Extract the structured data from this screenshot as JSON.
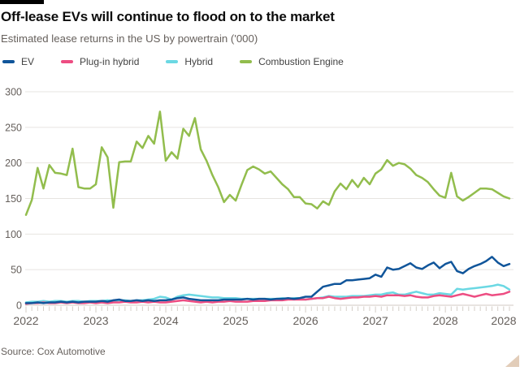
{
  "header": {
    "title": "Off-lease EVs will continue to flood on to the market",
    "subtitle": "Estimated lease returns in the US by powertrain ('000)"
  },
  "source": "Source: Cox Automotive",
  "colors": {
    "accent_bar": "#000000",
    "grid": "#e7e4e0",
    "zero_line": "#d0cac3",
    "tick": "#d4cec7",
    "axis_text": "#66605c",
    "resize_handle": "#e2cdb9"
  },
  "chart_data": {
    "type": "line",
    "title": "Off-lease EVs will continue to flood on to the market",
    "subtitle": "Estimated lease returns in the US by powertrain ('000)",
    "x_unit": "month",
    "x_start": "Jan 2022",
    "x_end": "Dec 2028",
    "x_tick_labels": [
      "2022",
      "2023",
      "2024",
      "2025",
      "2026",
      "2027",
      "2028",
      "2028"
    ],
    "y_ticks": [
      0,
      50,
      100,
      150,
      200,
      250,
      300
    ],
    "ylim": [
      0,
      300
    ],
    "grid": "horizontal",
    "legend_position": "top",
    "series": [
      {
        "name": "EV",
        "color": "#10559a",
        "values": [
          3,
          3,
          4,
          3,
          4,
          4,
          5,
          4,
          5,
          4,
          5,
          5,
          5,
          6,
          5,
          7,
          8,
          6,
          6,
          7,
          6,
          7,
          6,
          7,
          7,
          8,
          10,
          11,
          9,
          8,
          7,
          7,
          7,
          7,
          8,
          8,
          8,
          8,
          9,
          8,
          9,
          9,
          8,
          9,
          9,
          10,
          9,
          10,
          12,
          12,
          19,
          26,
          28,
          30,
          30,
          35,
          35,
          36,
          37,
          38,
          43,
          40,
          53,
          50,
          51,
          55,
          59,
          53,
          51,
          56,
          60,
          52,
          58,
          61,
          48,
          45,
          51,
          55,
          58,
          62,
          68,
          60,
          55,
          58
        ]
      },
      {
        "name": "Plug-in hybrid",
        "color": "#ed4d82",
        "values": [
          2,
          3,
          3,
          4,
          3,
          3,
          4,
          3,
          4,
          3,
          3,
          4,
          3,
          4,
          3,
          4,
          4,
          5,
          4,
          4,
          5,
          4,
          5,
          4,
          4,
          5,
          6,
          7,
          6,
          5,
          4,
          5,
          4,
          5,
          5,
          6,
          5,
          5,
          5,
          6,
          6,
          6,
          7,
          7,
          7,
          8,
          8,
          8,
          8,
          9,
          10,
          10,
          12,
          10,
          9,
          10,
          11,
          11,
          12,
          12,
          13,
          12,
          14,
          14,
          14,
          13,
          14,
          12,
          11,
          11,
          13,
          14,
          13,
          12,
          14,
          16,
          14,
          12,
          14,
          16,
          14,
          15,
          16,
          19
        ]
      },
      {
        "name": "Hybrid",
        "color": "#6bd8e3",
        "values": [
          4,
          5,
          5,
          6,
          5,
          6,
          6,
          5,
          6,
          6,
          5,
          6,
          6,
          6,
          7,
          6,
          7,
          7,
          6,
          7,
          7,
          8,
          9,
          12,
          11,
          8,
          12,
          14,
          15,
          14,
          13,
          12,
          11,
          11,
          10,
          10,
          10,
          9,
          9,
          9,
          9,
          9,
          9,
          9,
          10,
          9,
          10,
          10,
          8,
          9,
          10,
          11,
          13,
          12,
          12,
          12,
          13,
          13,
          13,
          14,
          15,
          15,
          17,
          18,
          15,
          15,
          17,
          19,
          17,
          15,
          15,
          17,
          16,
          15,
          23,
          22,
          23,
          24,
          25,
          26,
          27,
          29,
          27,
          22
        ]
      },
      {
        "name": "Combustion Engine",
        "color": "#92bd4d",
        "values": [
          127,
          148,
          193,
          164,
          197,
          186,
          185,
          183,
          220,
          166,
          164,
          164,
          170,
          222,
          208,
          137,
          201,
          202,
          202,
          230,
          221,
          238,
          227,
          272,
          203,
          215,
          206,
          248,
          238,
          263,
          219,
          203,
          183,
          166,
          145,
          155,
          147,
          169,
          190,
          195,
          191,
          185,
          188,
          179,
          170,
          163,
          152,
          152,
          143,
          142,
          136,
          146,
          141,
          160,
          171,
          163,
          176,
          166,
          179,
          170,
          185,
          191,
          204,
          196,
          200,
          198,
          192,
          183,
          179,
          173,
          163,
          154,
          151,
          186,
          153,
          147,
          152,
          158,
          164,
          164,
          163,
          158,
          153,
          150
        ]
      }
    ]
  }
}
